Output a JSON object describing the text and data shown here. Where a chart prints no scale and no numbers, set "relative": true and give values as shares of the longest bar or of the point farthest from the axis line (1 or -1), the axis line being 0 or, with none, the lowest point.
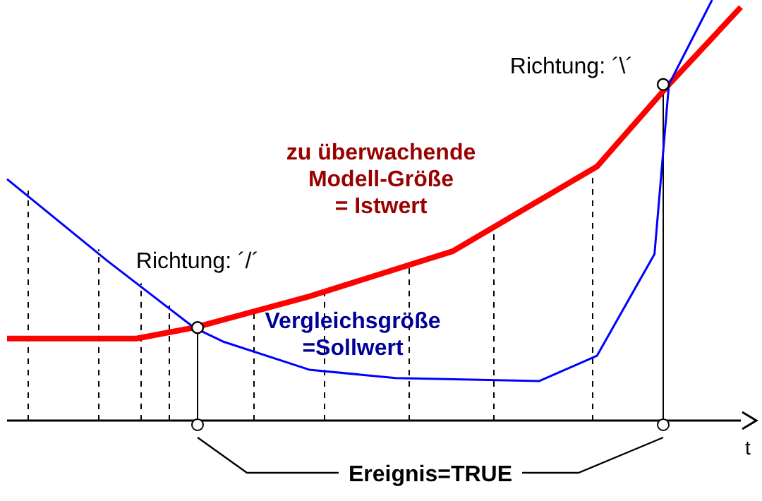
{
  "chart_data": {
    "type": "line",
    "relative": true,
    "xlabel": "t",
    "marker": "none",
    "categories": [
      null,
      null,
      null,
      null,
      null,
      null,
      null,
      null,
      null,
      null,
      null,
      null,
      null,
      null,
      null,
      null,
      null,
      null,
      null,
      null,
      null,
      null,
      null,
      null,
      null,
      null,
      null,
      null,
      null,
      null,
      null,
      null,
      null,
      null,
      null,
      null,
      null,
      null,
      null,
      null,
      null,
      null,
      null,
      null,
      null,
      null,
      null,
      null,
      null,
      null,
      null,
      null
    ],
    "series": [
      {
        "name": "zu überwachende\nModell-Größe\n= Istwert",
        "color": "#ff0000",
        "values": [
          0.195,
          null,
          null,
          null,
          null,
          null,
          null,
          null,
          null,
          0.195,
          null,
          null,
          null,
          0.221,
          null,
          null,
          null,
          null,
          null,
          null,
          null,
          0.295,
          null,
          null,
          null,
          null,
          null,
          null,
          null,
          null,
          null,
          0.403,
          null,
          null,
          null,
          null,
          null,
          null,
          null,
          null,
          null,
          0.604,
          null,
          null,
          null,
          null,
          0.799,
          null,
          null,
          null,
          null,
          0.983
        ]
      },
      {
        "name": "Vergleichsgröße\n=Sollwert",
        "color": "#0000ff",
        "values": [
          0.574,
          null,
          null,
          null,
          null,
          null,
          null,
          0.379,
          null,
          null,
          null,
          null,
          null,
          0.221,
          null,
          0.188,
          null,
          null,
          null,
          null,
          null,
          0.121,
          null,
          null,
          null,
          null,
          null,
          0.101,
          null,
          null,
          null,
          null,
          null,
          null,
          null,
          null,
          null,
          0.094,
          null,
          null,
          null,
          0.154,
          null,
          null,
          null,
          0.396,
          0.799,
          null,
          null,
          1,
          null,
          null
        ]
      }
    ],
    "annotations": [
      "Richtung: ´/´",
      "Richtung: ´\\´",
      "Ereignis=TRUE"
    ]
  }
}
